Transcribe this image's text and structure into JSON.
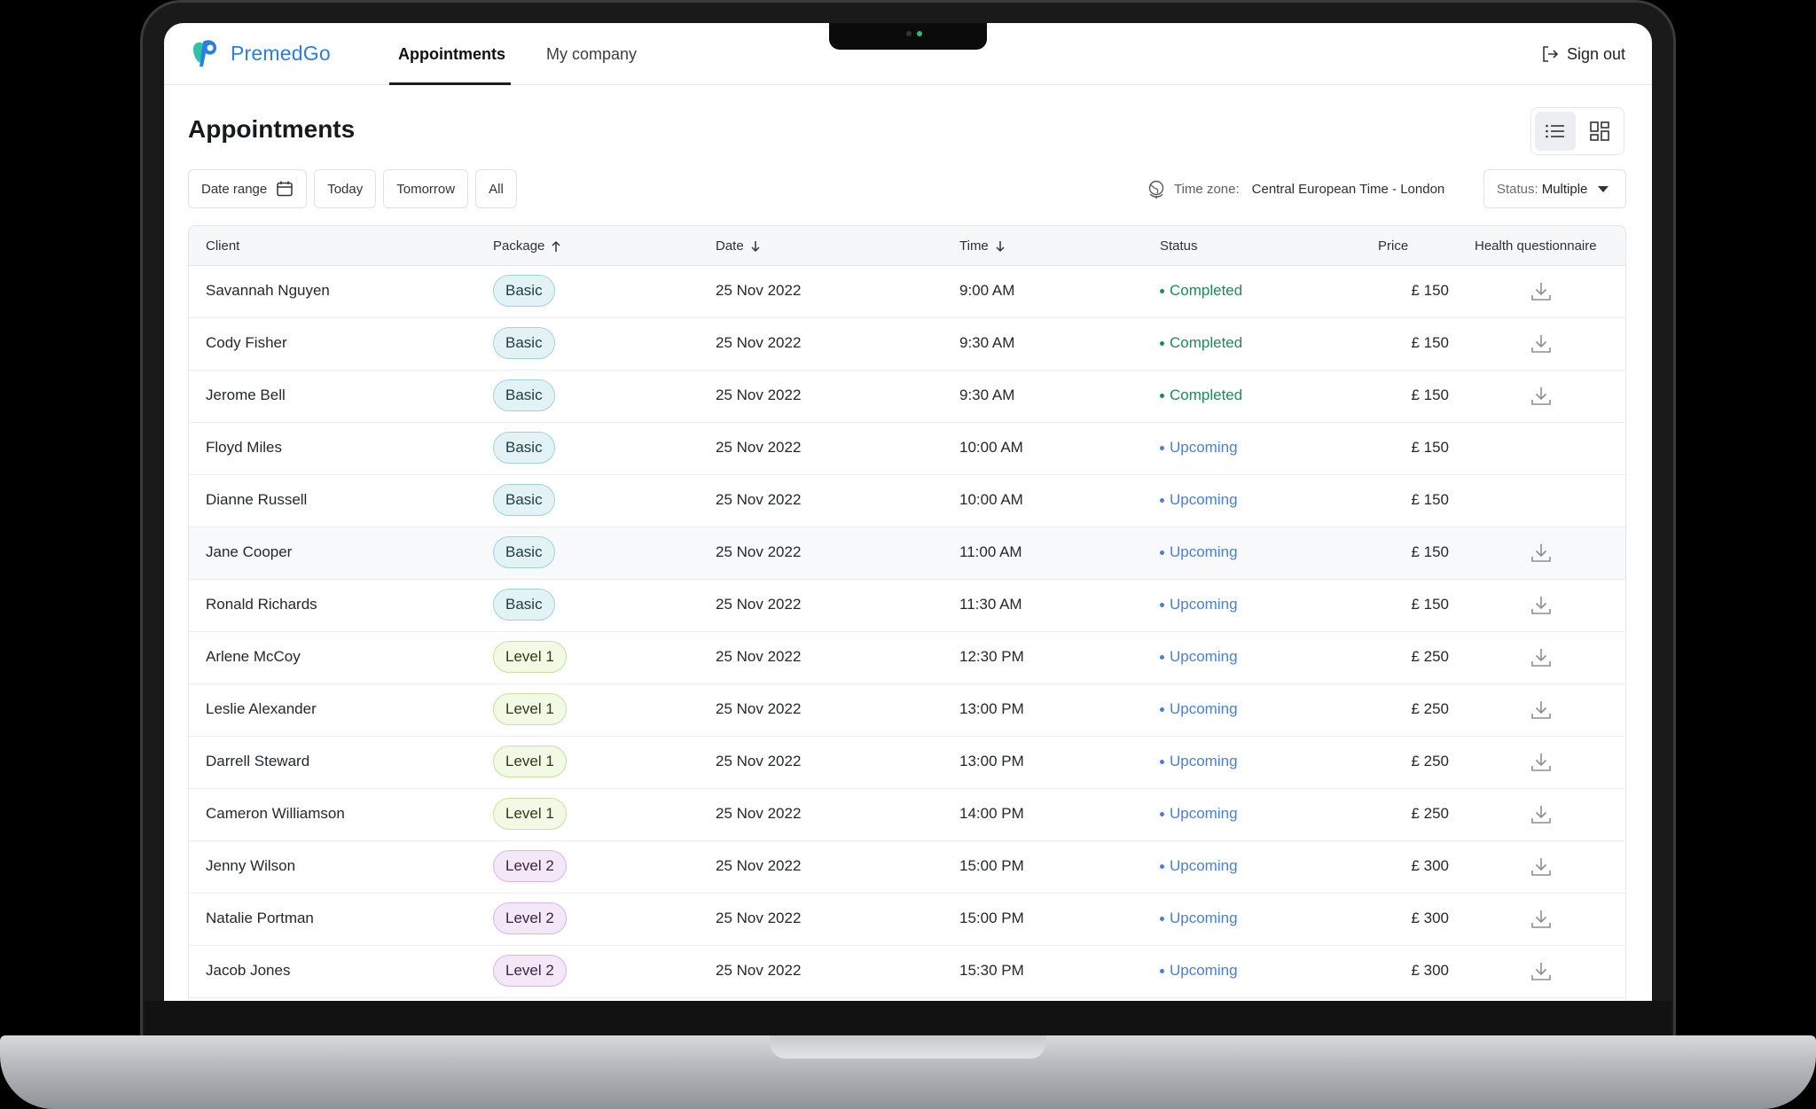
{
  "app": {
    "brand": "PremedGo",
    "brand_color": "#2a7fe0",
    "nav_tabs": [
      {
        "label": "Appointments",
        "active": true
      },
      {
        "label": "My company",
        "active": false
      }
    ],
    "sign_out": "Sign out"
  },
  "page": {
    "title": "Appointments",
    "view_modes": [
      {
        "icon": "list-view-icon",
        "active": true
      },
      {
        "icon": "grid-view-icon",
        "active": false
      }
    ]
  },
  "filters": {
    "date_range": "Date range",
    "today": "Today",
    "tomorrow": "Tomorrow",
    "all": "All",
    "timezone_label": "Time zone:",
    "timezone_value": "Central European Time - London",
    "status_label": "Status:",
    "status_value": "Multiple"
  },
  "table": {
    "columns": {
      "client": "Client",
      "package": "Package",
      "date": "Date",
      "time": "Time",
      "status": "Status",
      "price": "Price",
      "health": "Health questionnaire"
    },
    "rows": [
      {
        "client": "Savannah Nguyen",
        "package": "Basic",
        "date": "25 Nov 2022",
        "time": "9:00 AM",
        "status": "Completed",
        "price": "£ 150",
        "download": true
      },
      {
        "client": "Cody Fisher",
        "package": "Basic",
        "date": "25 Nov 2022",
        "time": "9:30 AM",
        "status": "Completed",
        "price": "£ 150",
        "download": true
      },
      {
        "client": "Jerome Bell",
        "package": "Basic",
        "date": "25 Nov 2022",
        "time": "9:30 AM",
        "status": "Completed",
        "price": "£ 150",
        "download": true
      },
      {
        "client": "Floyd Miles",
        "package": "Basic",
        "date": "25 Nov 2022",
        "time": "10:00 AM",
        "status": "Upcoming",
        "price": "£ 150",
        "download": false
      },
      {
        "client": "Dianne Russell",
        "package": "Basic",
        "date": "25 Nov 2022",
        "time": "10:00 AM",
        "status": "Upcoming",
        "price": "£ 150",
        "download": false
      },
      {
        "client": "Jane Cooper",
        "package": "Basic",
        "date": "25 Nov 2022",
        "time": "11:00 AM",
        "status": "Upcoming",
        "price": "£ 150",
        "download": true
      },
      {
        "client": "Ronald Richards",
        "package": "Basic",
        "date": "25 Nov 2022",
        "time": "11:30 AM",
        "status": "Upcoming",
        "price": "£ 150",
        "download": true
      },
      {
        "client": "Arlene McCoy",
        "package": "Level 1",
        "date": "25 Nov 2022",
        "time": "12:30 PM",
        "status": "Upcoming",
        "price": "£ 250",
        "download": true
      },
      {
        "client": "Leslie Alexander",
        "package": "Level 1",
        "date": "25 Nov 2022",
        "time": "13:00 PM",
        "status": "Upcoming",
        "price": "£ 250",
        "download": true
      },
      {
        "client": "Darrell Steward",
        "package": "Level 1",
        "date": "25 Nov 2022",
        "time": "13:00 PM",
        "status": "Upcoming",
        "price": "£ 250",
        "download": true
      },
      {
        "client": "Cameron Williamson",
        "package": "Level 1",
        "date": "25 Nov 2022",
        "time": "14:00 PM",
        "status": "Upcoming",
        "price": "£ 250",
        "download": true
      },
      {
        "client": "Jenny Wilson",
        "package": "Level 2",
        "date": "25 Nov 2022",
        "time": "15:00 PM",
        "status": "Upcoming",
        "price": "£ 300",
        "download": true
      },
      {
        "client": "Natalie Portman",
        "package": "Level 2",
        "date": "25 Nov 2022",
        "time": "15:00 PM",
        "status": "Upcoming",
        "price": "£ 300",
        "download": true
      },
      {
        "client": "Jacob Jones",
        "package": "Level 2",
        "date": "25 Nov 2022",
        "time": "15:30 PM",
        "status": "Upcoming",
        "price": "£ 300",
        "download": true
      }
    ]
  },
  "colors": {
    "completed": "#1f8a55",
    "upcoming": "#4a7fd6"
  }
}
